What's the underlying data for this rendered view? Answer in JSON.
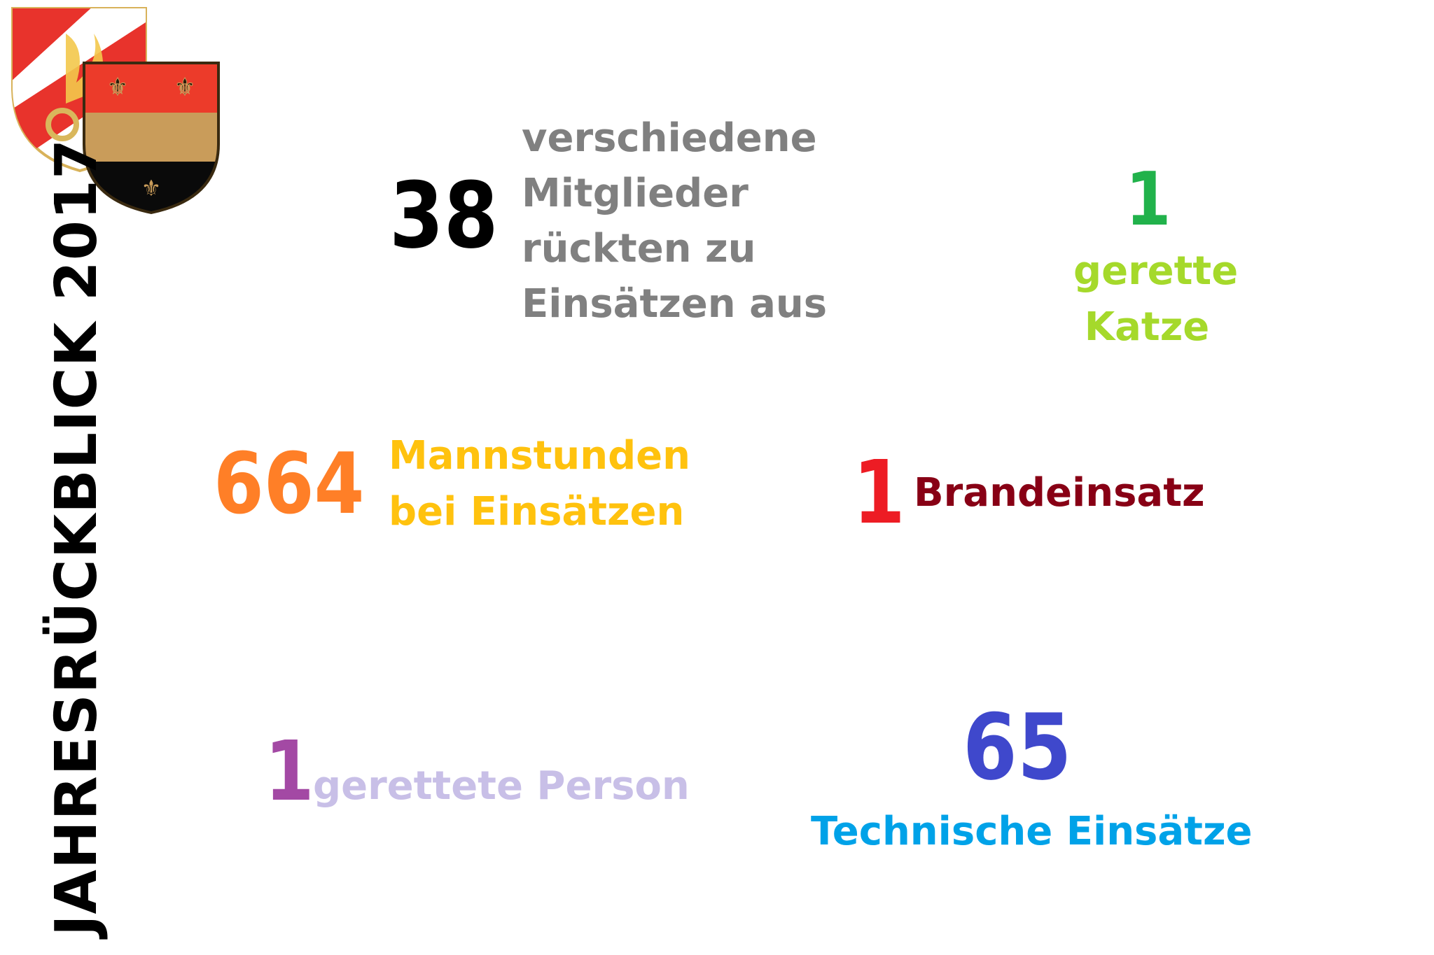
{
  "title": "JAHRESRÜCKBLICK 2017",
  "logos": {
    "back": {
      "name": "fire-brigade-shield-emblem",
      "colors": [
        "#e8332c",
        "#ffffff",
        "#f2c94c"
      ]
    },
    "front": {
      "name": "municipal-coat-of-arms",
      "colors": [
        "#ec3b2a",
        "#c99c5a",
        "#0a0a0a",
        "#3a2a10"
      ]
    }
  },
  "stats": {
    "members": {
      "value": "38",
      "label_lines": [
        "verschiedene",
        "Mitglieder",
        "rückten zu",
        "Einsätzen aus"
      ],
      "value_color": "#000000",
      "label_color": "#808080"
    },
    "cat": {
      "value": "1",
      "label_lines": [
        "gerette",
        "Katze"
      ],
      "value_color": "#21b24b",
      "label_color": "#a5d92b"
    },
    "hours": {
      "value": "664",
      "label_lines": [
        "Mannstunden",
        "bei Einsätzen"
      ],
      "value_color": "#ff7f27",
      "label_color": "#ffc20e"
    },
    "fire": {
      "value": "1",
      "label": "Brandeinsatz",
      "value_color": "#ed1c24",
      "label_color": "#880015"
    },
    "person": {
      "value": "1",
      "label": "gerettete Person",
      "value_color": "#a349a4",
      "label_color": "#c8bfe7"
    },
    "technical": {
      "value": "65",
      "label": "Technische Einsätze",
      "value_color": "#3f48cc",
      "label_color": "#00a2e8"
    }
  }
}
